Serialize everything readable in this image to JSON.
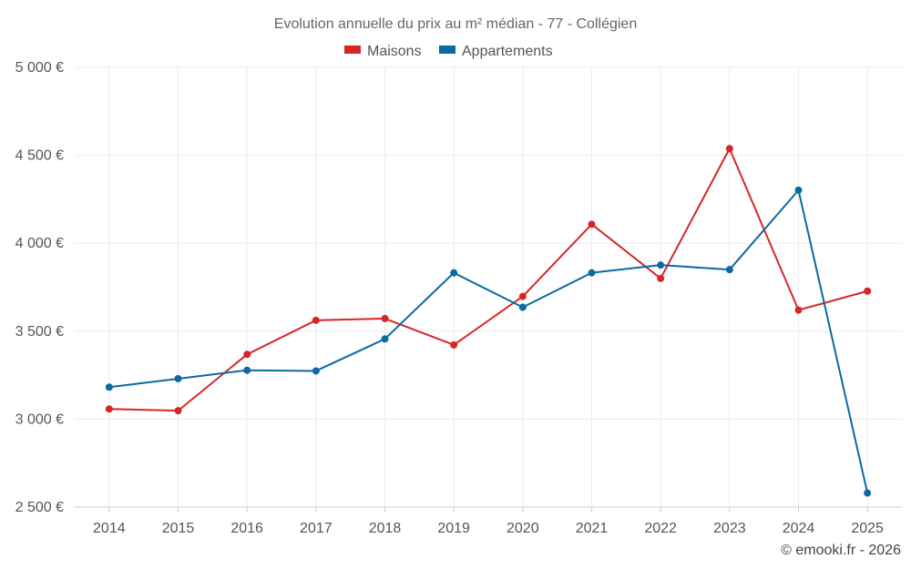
{
  "chart_data": {
    "type": "line",
    "title": "Evolution annuelle du prix au m² médian - 77 - Collégien",
    "categories": [
      "2014",
      "2015",
      "2016",
      "2017",
      "2018",
      "2019",
      "2020",
      "2021",
      "2022",
      "2023",
      "2024",
      "2025"
    ],
    "series": [
      {
        "name": "Maisons",
        "color": "#d62728",
        "values": [
          3058,
          3048,
          3368,
          3562,
          3572,
          3422,
          3698,
          4108,
          3800,
          4538,
          3620,
          3728
        ]
      },
      {
        "name": "Appartements",
        "color": "#0a6aa1",
        "values": [
          3182,
          3230,
          3278,
          3274,
          3456,
          3832,
          3636,
          3832,
          3876,
          3850,
          4302,
          2580
        ]
      }
    ],
    "ylim": [
      2500,
      5000
    ],
    "yticks": [
      2500,
      3000,
      3500,
      4000,
      4500,
      5000
    ],
    "ytick_labels": [
      "2 500 €",
      "3 000 €",
      "3 500 €",
      "4 000 €",
      "4 500 €",
      "5 000 €"
    ],
    "xlabel": "",
    "ylabel": "",
    "grid": true,
    "legend": "top-center"
  },
  "credit": "© emooki.fr - 2026"
}
